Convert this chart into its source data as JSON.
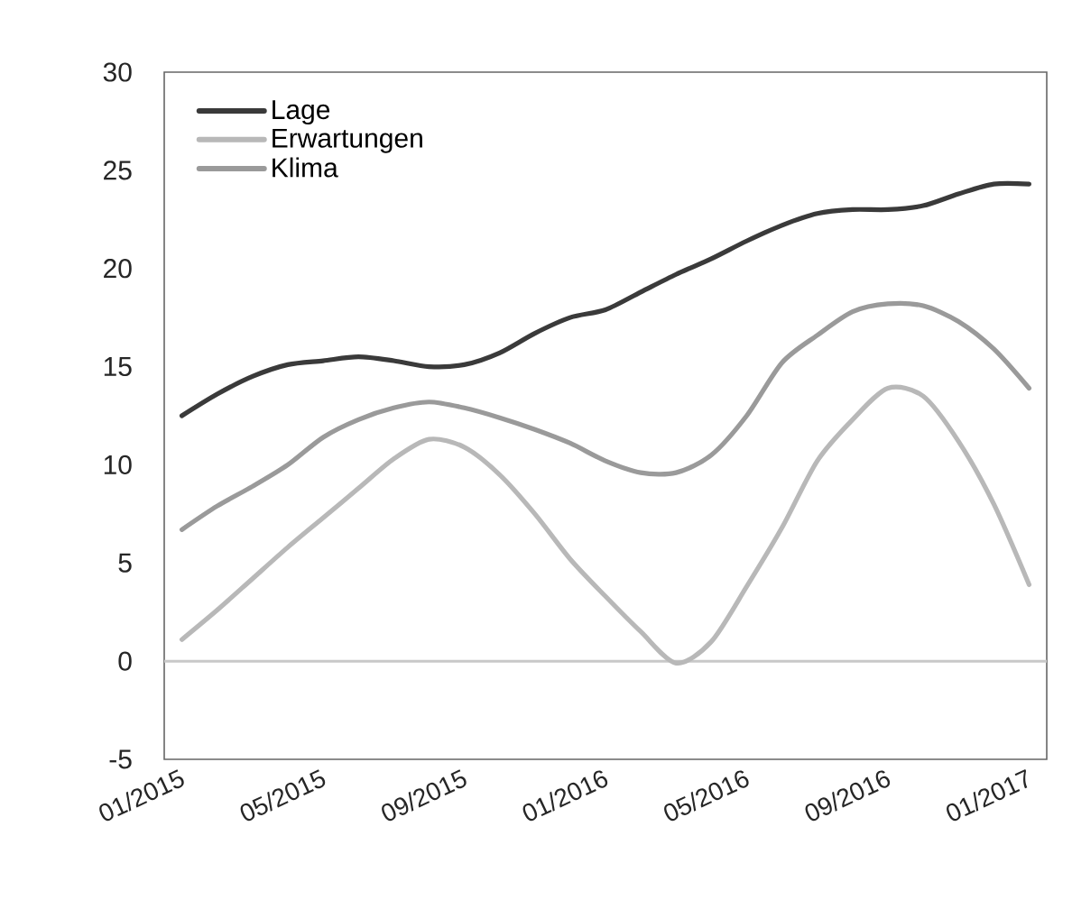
{
  "chart_data": {
    "type": "line",
    "categories": [
      "01/2015",
      null,
      null,
      null,
      "05/2015",
      null,
      null,
      null,
      "09/2015",
      null,
      null,
      null,
      "01/2016",
      null,
      null,
      null,
      "05/2016",
      null,
      null,
      null,
      "09/2016",
      null,
      null,
      null,
      "01/2017"
    ],
    "series": [
      {
        "name": "Lage",
        "color": "#3a3a3a",
        "values": [
          12.5,
          13.6,
          14.5,
          15.1,
          15.3,
          15.5,
          15.3,
          15.0,
          15.1,
          15.7,
          16.7,
          17.5,
          17.9,
          18.8,
          19.7,
          20.5,
          21.4,
          22.2,
          22.8,
          23.0,
          23.0,
          23.2,
          23.8,
          24.3,
          24.3
        ]
      },
      {
        "name": "Erwartungen",
        "color": "#b8b8b8",
        "values": [
          1.1,
          2.6,
          4.2,
          5.8,
          7.3,
          8.8,
          10.3,
          11.3,
          10.9,
          9.5,
          7.5,
          5.2,
          3.3,
          1.5,
          -0.1,
          1.0,
          3.8,
          6.8,
          10.2,
          12.3,
          13.9,
          13.5,
          11.2,
          8.0,
          3.9
        ]
      },
      {
        "name": "Klima",
        "color": "#9a9a9a",
        "values": [
          6.7,
          7.9,
          8.9,
          10.0,
          11.4,
          12.3,
          12.9,
          13.2,
          12.9,
          12.4,
          11.8,
          11.1,
          10.2,
          9.6,
          9.6,
          10.5,
          12.5,
          15.2,
          16.6,
          17.8,
          18.2,
          18.1,
          17.3,
          15.9,
          13.9
        ]
      }
    ],
    "ylim": [
      -5,
      30
    ],
    "yticks": [
      -5,
      0,
      5,
      10,
      15,
      20,
      25,
      30
    ],
    "ref_lines": [
      {
        "axis": "y",
        "value": 0,
        "color": "#c8c8c8"
      }
    ],
    "legend": "top left",
    "grid": false,
    "marker": "none",
    "line_style": "solid"
  }
}
